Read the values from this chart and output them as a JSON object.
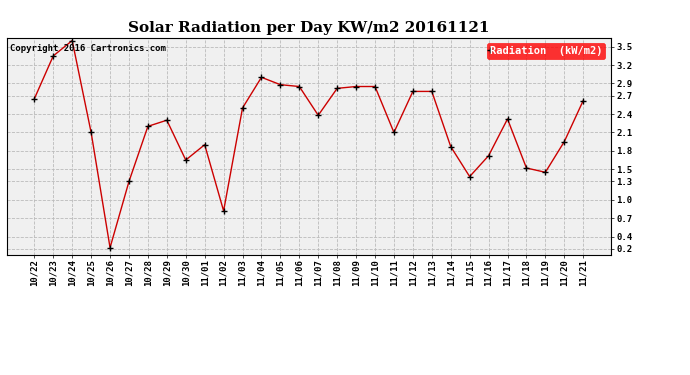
{
  "title": "Solar Radiation per Day KW/m2 20161121",
  "copyright_text": "Copyright 2016 Cartronics.com",
  "legend_label": "Radiation  (kW/m2)",
  "dates": [
    "10/22",
    "10/23",
    "10/24",
    "10/25",
    "10/26",
    "10/27",
    "10/28",
    "10/29",
    "10/30",
    "11/01",
    "11/02",
    "11/03",
    "11/04",
    "11/05",
    "11/06",
    "11/07",
    "11/08",
    "11/09",
    "11/10",
    "11/11",
    "11/12",
    "11/13",
    "11/14",
    "11/15",
    "11/16",
    "11/17",
    "11/18",
    "11/19",
    "11/20",
    "11/21"
  ],
  "values": [
    2.65,
    3.35,
    3.6,
    2.1,
    0.22,
    1.3,
    2.2,
    2.3,
    1.65,
    1.9,
    0.82,
    2.5,
    3.0,
    2.88,
    2.85,
    2.38,
    2.82,
    2.85,
    2.85,
    2.1,
    2.77,
    2.77,
    1.87,
    1.38,
    1.72,
    2.32,
    1.52,
    1.45,
    1.95,
    2.62
  ],
  "line_color": "#cc0000",
  "marker_color": "#000000",
  "background_color": "#ffffff",
  "plot_bg_color": "#f0f0f0",
  "grid_color": "#bbbbbb",
  "ylim": [
    0.1,
    3.65
  ],
  "yticks": [
    0.2,
    0.4,
    0.7,
    1.0,
    1.3,
    1.5,
    1.8,
    2.1,
    2.4,
    2.7,
    2.9,
    3.2,
    3.5
  ],
  "title_fontsize": 11,
  "tick_fontsize": 6.5,
  "legend_fontsize": 7.5,
  "copyright_fontsize": 6.5
}
